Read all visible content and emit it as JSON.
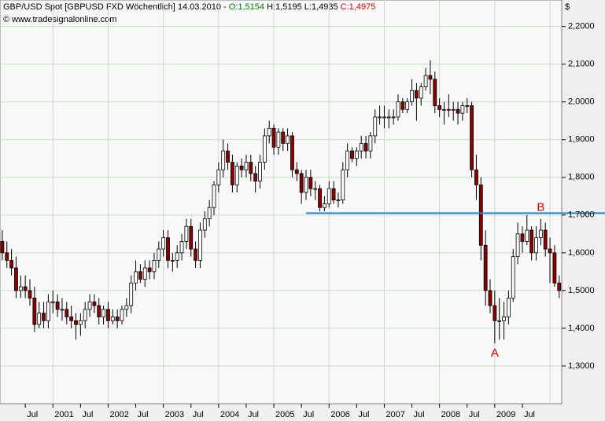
{
  "chart_data": {
    "type": "candlestick",
    "header": "GBP/USD Spot [GBPUSD FXD  Wöchentlich] 14.03.2010 -",
    "header_open": "O:1,5154",
    "header_high_low": "H:1,5195 L:1,4935",
    "header_close": "C:1,4975",
    "copyright": "© www.tradesignalonline.com",
    "y_unit": "$",
    "categories": [
      "2000-02",
      "2000-03",
      "2000-04",
      "2000-05",
      "2000-06",
      "2000-07",
      "2000-08",
      "2000-09",
      "2000-10",
      "2000-11",
      "2000-12",
      "2001-01",
      "2001-02",
      "2001-03",
      "2001-04",
      "2001-05",
      "2001-06",
      "2001-07",
      "2001-08",
      "2001-09",
      "2001-10",
      "2001-11",
      "2001-12",
      "2002-01",
      "2002-02",
      "2002-03",
      "2002-04",
      "2002-05",
      "2002-06",
      "2002-07",
      "2002-08",
      "2002-09",
      "2002-10",
      "2002-11",
      "2002-12",
      "2003-01",
      "2003-02",
      "2003-03",
      "2003-04",
      "2003-05",
      "2003-06",
      "2003-07",
      "2003-08",
      "2003-09",
      "2003-10",
      "2003-11",
      "2003-12",
      "2004-01",
      "2004-02",
      "2004-03",
      "2004-04",
      "2004-05",
      "2004-06",
      "2004-07",
      "2004-08",
      "2004-09",
      "2004-10",
      "2004-11",
      "2004-12",
      "2005-01",
      "2005-02",
      "2005-03",
      "2005-04",
      "2005-05",
      "2005-06",
      "2005-07",
      "2005-08",
      "2005-09",
      "2005-10",
      "2005-11",
      "2005-12",
      "2006-01",
      "2006-02",
      "2006-03",
      "2006-04",
      "2006-05",
      "2006-06",
      "2006-07",
      "2006-08",
      "2006-09",
      "2006-10",
      "2006-11",
      "2006-12",
      "2007-01",
      "2007-02",
      "2007-03",
      "2007-04",
      "2007-05",
      "2007-06",
      "2007-07",
      "2007-08",
      "2007-09",
      "2007-10",
      "2007-11",
      "2007-12",
      "2008-01",
      "2008-02",
      "2008-03",
      "2008-04",
      "2008-05",
      "2008-06",
      "2008-07",
      "2008-08",
      "2008-09",
      "2008-10",
      "2008-11",
      "2008-12",
      "2009-01",
      "2009-02",
      "2009-03",
      "2009-04",
      "2009-05",
      "2009-06",
      "2009-07",
      "2009-08",
      "2009-09",
      "2009-10",
      "2009-11",
      "2009-12",
      "2010-01",
      "2010-02",
      "2010-03"
    ],
    "open": [
      1.63,
      1.6,
      1.58,
      1.56,
      1.5,
      1.51,
      1.5,
      1.48,
      1.41,
      1.44,
      1.42,
      1.47,
      1.47,
      1.45,
      1.45,
      1.43,
      1.42,
      1.41,
      1.42,
      1.45,
      1.47,
      1.46,
      1.43,
      1.45,
      1.42,
      1.43,
      1.42,
      1.45,
      1.46,
      1.52,
      1.55,
      1.53,
      1.56,
      1.55,
      1.58,
      1.61,
      1.64,
      1.58,
      1.58,
      1.6,
      1.63,
      1.67,
      1.61,
      1.58,
      1.66,
      1.69,
      1.72,
      1.78,
      1.82,
      1.87,
      1.84,
      1.78,
      1.83,
      1.82,
      1.84,
      1.81,
      1.79,
      1.84,
      1.91,
      1.93,
      1.88,
      1.92,
      1.89,
      1.91,
      1.82,
      1.81,
      1.76,
      1.8,
      1.77,
      1.77,
      1.72,
      1.73,
      1.77,
      1.74,
      1.74,
      1.82,
      1.87,
      1.85,
      1.87,
      1.89,
      1.87,
      1.91,
      1.96,
      1.96,
      1.96,
      1.96,
      1.96,
      2.0,
      1.98,
      2.0,
      2.03,
      2.01,
      2.04,
      2.07,
      2.06,
      1.99,
      1.98,
      1.98,
      1.98,
      1.98,
      1.97,
      1.99,
      1.99,
      1.82,
      1.78,
      1.62,
      1.5,
      1.46,
      1.42,
      1.42,
      1.43,
      1.48,
      1.59,
      1.65,
      1.63,
      1.66,
      1.6,
      1.64,
      1.66,
      1.61,
      1.6,
      1.52
    ],
    "high": [
      1.66,
      1.63,
      1.61,
      1.59,
      1.54,
      1.54,
      1.53,
      1.51,
      1.47,
      1.47,
      1.49,
      1.5,
      1.49,
      1.48,
      1.47,
      1.46,
      1.44,
      1.44,
      1.47,
      1.49,
      1.49,
      1.48,
      1.46,
      1.47,
      1.45,
      1.45,
      1.46,
      1.48,
      1.54,
      1.58,
      1.57,
      1.58,
      1.58,
      1.6,
      1.63,
      1.66,
      1.66,
      1.6,
      1.62,
      1.65,
      1.69,
      1.69,
      1.63,
      1.68,
      1.71,
      1.74,
      1.79,
      1.84,
      1.9,
      1.89,
      1.86,
      1.84,
      1.85,
      1.86,
      1.86,
      1.83,
      1.86,
      1.93,
      1.95,
      1.94,
      1.93,
      1.93,
      1.93,
      1.92,
      1.84,
      1.82,
      1.82,
      1.82,
      1.79,
      1.78,
      1.75,
      1.79,
      1.79,
      1.76,
      1.84,
      1.89,
      1.88,
      1.88,
      1.91,
      1.91,
      1.92,
      1.98,
      1.99,
      1.99,
      1.98,
      1.98,
      2.02,
      2.01,
      2.01,
      2.06,
      2.05,
      2.05,
      2.09,
      2.11,
      2.08,
      2.01,
      2.0,
      2.02,
      2.0,
      2.0,
      2.0,
      2.01,
      2.0,
      1.86,
      1.8,
      1.66,
      1.53,
      1.5,
      1.48,
      1.47,
      1.5,
      1.61,
      1.68,
      1.67,
      1.7,
      1.67,
      1.67,
      1.69,
      1.68,
      1.64,
      1.62,
      1.54
    ],
    "low": [
      1.58,
      1.56,
      1.54,
      1.48,
      1.48,
      1.48,
      1.46,
      1.39,
      1.4,
      1.4,
      1.4,
      1.44,
      1.43,
      1.42,
      1.41,
      1.4,
      1.37,
      1.38,
      1.4,
      1.43,
      1.44,
      1.41,
      1.41,
      1.4,
      1.41,
      1.4,
      1.41,
      1.43,
      1.44,
      1.5,
      1.52,
      1.51,
      1.53,
      1.53,
      1.56,
      1.59,
      1.56,
      1.55,
      1.56,
      1.58,
      1.61,
      1.59,
      1.56,
      1.56,
      1.64,
      1.67,
      1.7,
      1.76,
      1.8,
      1.82,
      1.76,
      1.76,
      1.8,
      1.8,
      1.79,
      1.76,
      1.77,
      1.82,
      1.89,
      1.86,
      1.86,
      1.87,
      1.87,
      1.8,
      1.79,
      1.73,
      1.74,
      1.75,
      1.74,
      1.71,
      1.71,
      1.72,
      1.73,
      1.72,
      1.73,
      1.8,
      1.84,
      1.83,
      1.85,
      1.85,
      1.85,
      1.89,
      1.94,
      1.93,
      1.93,
      1.94,
      1.95,
      1.97,
      1.97,
      1.99,
      1.95,
      1.99,
      2.03,
      2.02,
      1.97,
      1.96,
      1.94,
      1.96,
      1.95,
      1.94,
      1.95,
      1.97,
      1.8,
      1.74,
      1.58,
      1.46,
      1.44,
      1.36,
      1.37,
      1.37,
      1.41,
      1.47,
      1.57,
      1.6,
      1.62,
      1.58,
      1.58,
      1.62,
      1.59,
      1.52,
      1.51,
      1.48
    ],
    "close": [
      1.6,
      1.58,
      1.56,
      1.5,
      1.51,
      1.5,
      1.48,
      1.41,
      1.44,
      1.42,
      1.47,
      1.47,
      1.45,
      1.45,
      1.43,
      1.42,
      1.41,
      1.42,
      1.45,
      1.47,
      1.46,
      1.43,
      1.45,
      1.42,
      1.43,
      1.42,
      1.45,
      1.46,
      1.52,
      1.55,
      1.53,
      1.56,
      1.55,
      1.58,
      1.61,
      1.64,
      1.58,
      1.58,
      1.6,
      1.63,
      1.67,
      1.61,
      1.58,
      1.66,
      1.69,
      1.72,
      1.78,
      1.82,
      1.87,
      1.84,
      1.78,
      1.83,
      1.82,
      1.84,
      1.81,
      1.79,
      1.84,
      1.91,
      1.93,
      1.88,
      1.92,
      1.89,
      1.91,
      1.82,
      1.81,
      1.76,
      1.8,
      1.77,
      1.77,
      1.72,
      1.73,
      1.77,
      1.74,
      1.74,
      1.82,
      1.87,
      1.85,
      1.87,
      1.89,
      1.87,
      1.91,
      1.96,
      1.96,
      1.96,
      1.96,
      1.96,
      2.0,
      1.98,
      2.0,
      2.03,
      2.01,
      2.04,
      2.07,
      2.06,
      1.99,
      1.98,
      1.98,
      1.98,
      1.98,
      1.97,
      1.99,
      1.99,
      1.82,
      1.78,
      1.62,
      1.5,
      1.46,
      1.42,
      1.42,
      1.43,
      1.48,
      1.59,
      1.65,
      1.63,
      1.66,
      1.6,
      1.64,
      1.66,
      1.61,
      1.6,
      1.52,
      1.5
    ],
    "up_color": "#ffffff",
    "down_color": "#8b0000",
    "ylim": [
      1.2,
      2.27
    ],
    "yticks": [
      {
        "value": 1.3,
        "label": "1,3000"
      },
      {
        "value": 1.4,
        "label": "1,4000"
      },
      {
        "value": 1.5,
        "label": "1,5000"
      },
      {
        "value": 1.6,
        "label": "1,6000"
      },
      {
        "value": 1.7,
        "label": "1,7000"
      },
      {
        "value": 1.8,
        "label": "1,8000"
      },
      {
        "value": 1.9,
        "label": "1,9000"
      },
      {
        "value": 2.0,
        "label": "2,0000"
      },
      {
        "value": 2.1,
        "label": "2,1000"
      },
      {
        "value": 2.2,
        "label": "2,2000"
      }
    ],
    "xticks": [
      {
        "value": "2000-07",
        "label": "Jul"
      },
      {
        "value": "2001-01",
        "label": "2001"
      },
      {
        "value": "2001-07",
        "label": "Jul"
      },
      {
        "value": "2002-01",
        "label": "2002"
      },
      {
        "value": "2002-07",
        "label": "Jul"
      },
      {
        "value": "2003-01",
        "label": "2003"
      },
      {
        "value": "2003-07",
        "label": "Jul"
      },
      {
        "value": "2004-01",
        "label": "2004"
      },
      {
        "value": "2004-07",
        "label": "Jul"
      },
      {
        "value": "2005-01",
        "label": "2005"
      },
      {
        "value": "2005-07",
        "label": "Jul"
      },
      {
        "value": "2006-01",
        "label": "2006"
      },
      {
        "value": "2006-07",
        "label": "Jul"
      },
      {
        "value": "2007-01",
        "label": "2007"
      },
      {
        "value": "2007-07",
        "label": "Jul"
      },
      {
        "value": "2008-01",
        "label": "2008"
      },
      {
        "value": "2008-07",
        "label": "Jul"
      },
      {
        "value": "2009-01",
        "label": "2009"
      },
      {
        "value": "2009-07",
        "label": "Jul"
      }
    ],
    "xgrid": [
      "2001-01",
      "2002-01",
      "2003-01",
      "2004-01",
      "2005-01",
      "2006-01",
      "2007-01",
      "2008-01",
      "2009-01",
      "2010-01"
    ],
    "grid": true,
    "hline": {
      "value": 1.705,
      "start": "2005-08",
      "color": "#1f86d0"
    },
    "annotations": [
      {
        "text": "A",
        "x": "2009-01",
        "anchor": "low"
      },
      {
        "text": "B",
        "x": "2009-11",
        "anchor": "high"
      }
    ],
    "annotation_color": "#e00000"
  }
}
